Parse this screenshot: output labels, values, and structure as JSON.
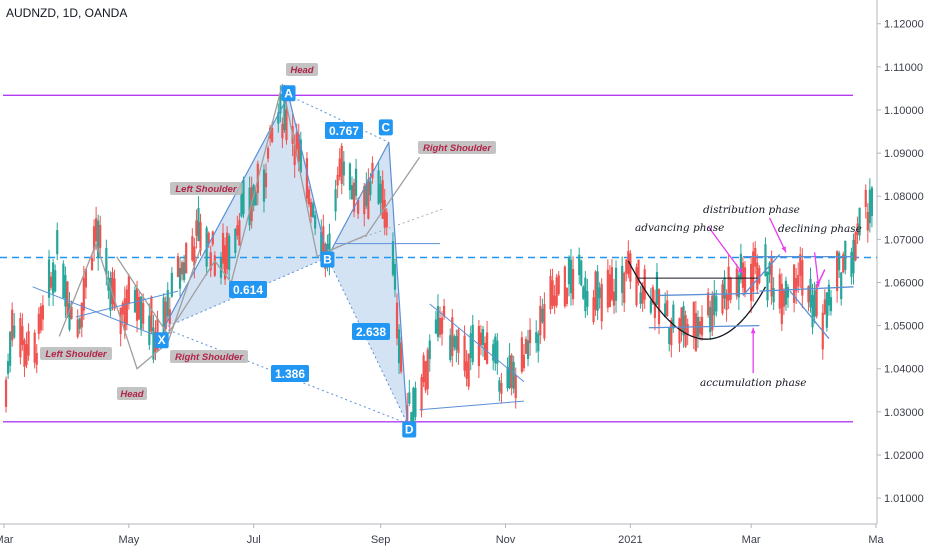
{
  "header": {
    "symbol_label": "AUDNZD, 1D, OANDA"
  },
  "chart_data": {
    "type": "candlestick",
    "y_ticks": [
      "1.12000",
      "1.11000",
      "1.10000",
      "1.09000",
      "1.08000",
      "1.07000",
      "1.06000",
      "1.05000",
      "1.04000",
      "1.03000",
      "1.02000",
      "1.01000"
    ],
    "x_ticks": [
      "Mar",
      "May",
      "Jul",
      "Sep",
      "Nov",
      "2021",
      "Mar",
      "Ma"
    ],
    "ylim": [
      1.004,
      1.1255
    ],
    "grid": false,
    "colors": {
      "up": "#26a69a",
      "down": "#ef5350",
      "purple": "#b23bf0",
      "dashed": "#2196f3",
      "pattern": "#5b8fd6",
      "fill": "#9ec1e6",
      "pink": "#e83df0"
    },
    "levels": {
      "resistance": 1.1034,
      "support": 1.0277,
      "neckline": 1.0658
    },
    "path_points": [
      [
        "2020-03-01",
        1.0285
      ],
      [
        "2020-03-05",
        1.052
      ],
      [
        "2020-03-15",
        1.041
      ],
      [
        "2020-03-28",
        1.068
      ],
      [
        "2020-04-05",
        1.048
      ],
      [
        "2020-04-15",
        1.072
      ],
      [
        "2020-04-25",
        1.052
      ],
      [
        "2020-05-05",
        1.058
      ],
      [
        "2020-05-15",
        1.046
      ],
      [
        "2020-05-25",
        1.061
      ],
      [
        "2020-06-05",
        1.072
      ],
      [
        "2020-06-15",
        1.064
      ],
      [
        "2020-06-25",
        1.076
      ],
      [
        "2020-07-05",
        1.082
      ],
      [
        "2020-07-12",
        1.098
      ],
      [
        "2020-07-18",
        1.099
      ],
      [
        "2020-07-25",
        1.085
      ],
      [
        "2020-08-01",
        1.075
      ],
      [
        "2020-08-06",
        1.066
      ],
      [
        "2020-08-14",
        1.089
      ],
      [
        "2020-08-21",
        1.079
      ],
      [
        "2020-08-28",
        1.083
      ],
      [
        "2020-09-05",
        1.075
      ],
      [
        "2020-09-10",
        1.048
      ],
      [
        "2020-09-14",
        1.029
      ],
      [
        "2020-09-20",
        1.036
      ],
      [
        "2020-10-01",
        1.051
      ],
      [
        "2020-10-12",
        1.041
      ],
      [
        "2020-10-22",
        1.047
      ],
      [
        "2020-11-01",
        1.036
      ],
      [
        "2020-11-10",
        1.041
      ],
      [
        "2020-11-22",
        1.054
      ],
      [
        "2020-12-05",
        1.062
      ],
      [
        "2020-12-18",
        1.055
      ],
      [
        "2020-12-31",
        1.062
      ],
      [
        "2021-01-10",
        1.058
      ],
      [
        "2021-01-20",
        1.051
      ],
      [
        "2021-02-01",
        1.049
      ],
      [
        "2021-02-12",
        1.056
      ],
      [
        "2021-02-25",
        1.061
      ],
      [
        "2021-03-05",
        1.064
      ],
      [
        "2021-03-15",
        1.058
      ],
      [
        "2021-03-25",
        1.062
      ],
      [
        "2021-04-05",
        1.051
      ],
      [
        "2021-04-12",
        1.061
      ],
      [
        "2021-04-20",
        1.067
      ],
      [
        "2021-04-28",
        1.079
      ]
    ],
    "annotations": {
      "tags_blue": [
        "0.767",
        "0.614",
        "2.638",
        "1.386"
      ],
      "points": [
        "A",
        "B",
        "C",
        "D",
        "X"
      ],
      "tags_gray": [
        "Head",
        "Left Shoulder",
        "Right Shoulder",
        "Left Shoulder",
        "Right Shoulder",
        "Head"
      ],
      "phases": [
        "distribution phase",
        "advancing phase",
        "declining phase",
        "accumulation phase"
      ]
    }
  }
}
